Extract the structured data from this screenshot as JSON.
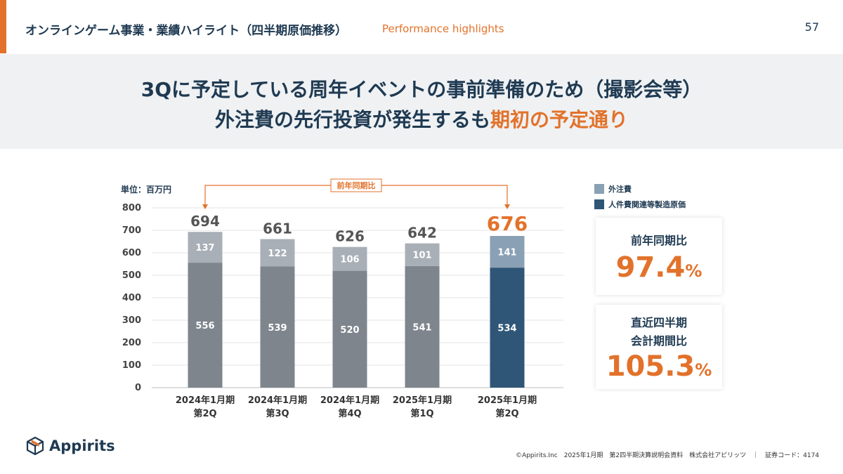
{
  "colors": {
    "accent": "#e2722b",
    "navy": "#1f3a52",
    "bar_grey_outsourcing": "#a9afb7",
    "bar_grey_personnel": "#7e858d",
    "bar_current_outsourcing": "#8aa0b4",
    "bar_current_personnel": "#2f5677"
  },
  "header": {
    "title": "オンラインゲーム事業・業績ハイライト（四半期原価推移）",
    "subtitle": "Performance highlights",
    "page_number": "57"
  },
  "banner": {
    "line1": "3Qに予定している周年イベントの事前準備のため（撮影会等）",
    "line2_plain": "外注費の先行投資が発生するも",
    "line2_highlight": "期初の予定通り"
  },
  "chart_data": {
    "type": "bar",
    "stacked": true,
    "unit_label": "単位：百万円",
    "categories": [
      [
        "2024年1月期",
        "第2Q"
      ],
      [
        "2024年1月期",
        "第3Q"
      ],
      [
        "2024年1月期",
        "第4Q"
      ],
      [
        "2025年1月期",
        "第1Q"
      ],
      [
        "2025年1月期",
        "第2Q"
      ]
    ],
    "series": [
      {
        "name": "人件費関連等製造原価",
        "values": [
          556,
          539,
          520,
          541,
          534
        ]
      },
      {
        "name": "外注費",
        "values": [
          137,
          122,
          106,
          101,
          141
        ]
      }
    ],
    "totals": [
      "694",
      "661",
      "626",
      "642",
      "676"
    ],
    "ylim": [
      0,
      800
    ],
    "yticks": [
      "0",
      "100",
      "200",
      "300",
      "400",
      "500",
      "600",
      "700",
      "800"
    ],
    "grid": true,
    "legend": {
      "position": "top-right",
      "items": [
        "外注費",
        "人件費関連等製造原価"
      ]
    },
    "highlight_category_index": 4,
    "comparison_annotation": {
      "label": "前年同期比",
      "from_index": 0,
      "to_index": 4
    }
  },
  "cards": [
    {
      "label_lines": [
        "前年同期比"
      ],
      "value": "97.4",
      "suffix": "%"
    },
    {
      "label_lines": [
        "直近四半期",
        "会計期間比"
      ],
      "value": "105.3",
      "suffix": "%"
    }
  ],
  "logo": {
    "text": "Appirits"
  },
  "footer": "©Appirits.Inc　2025年1月期　第2四半期決算説明会資料　株式会社アピリッツ　｜　証券コード：4174"
}
